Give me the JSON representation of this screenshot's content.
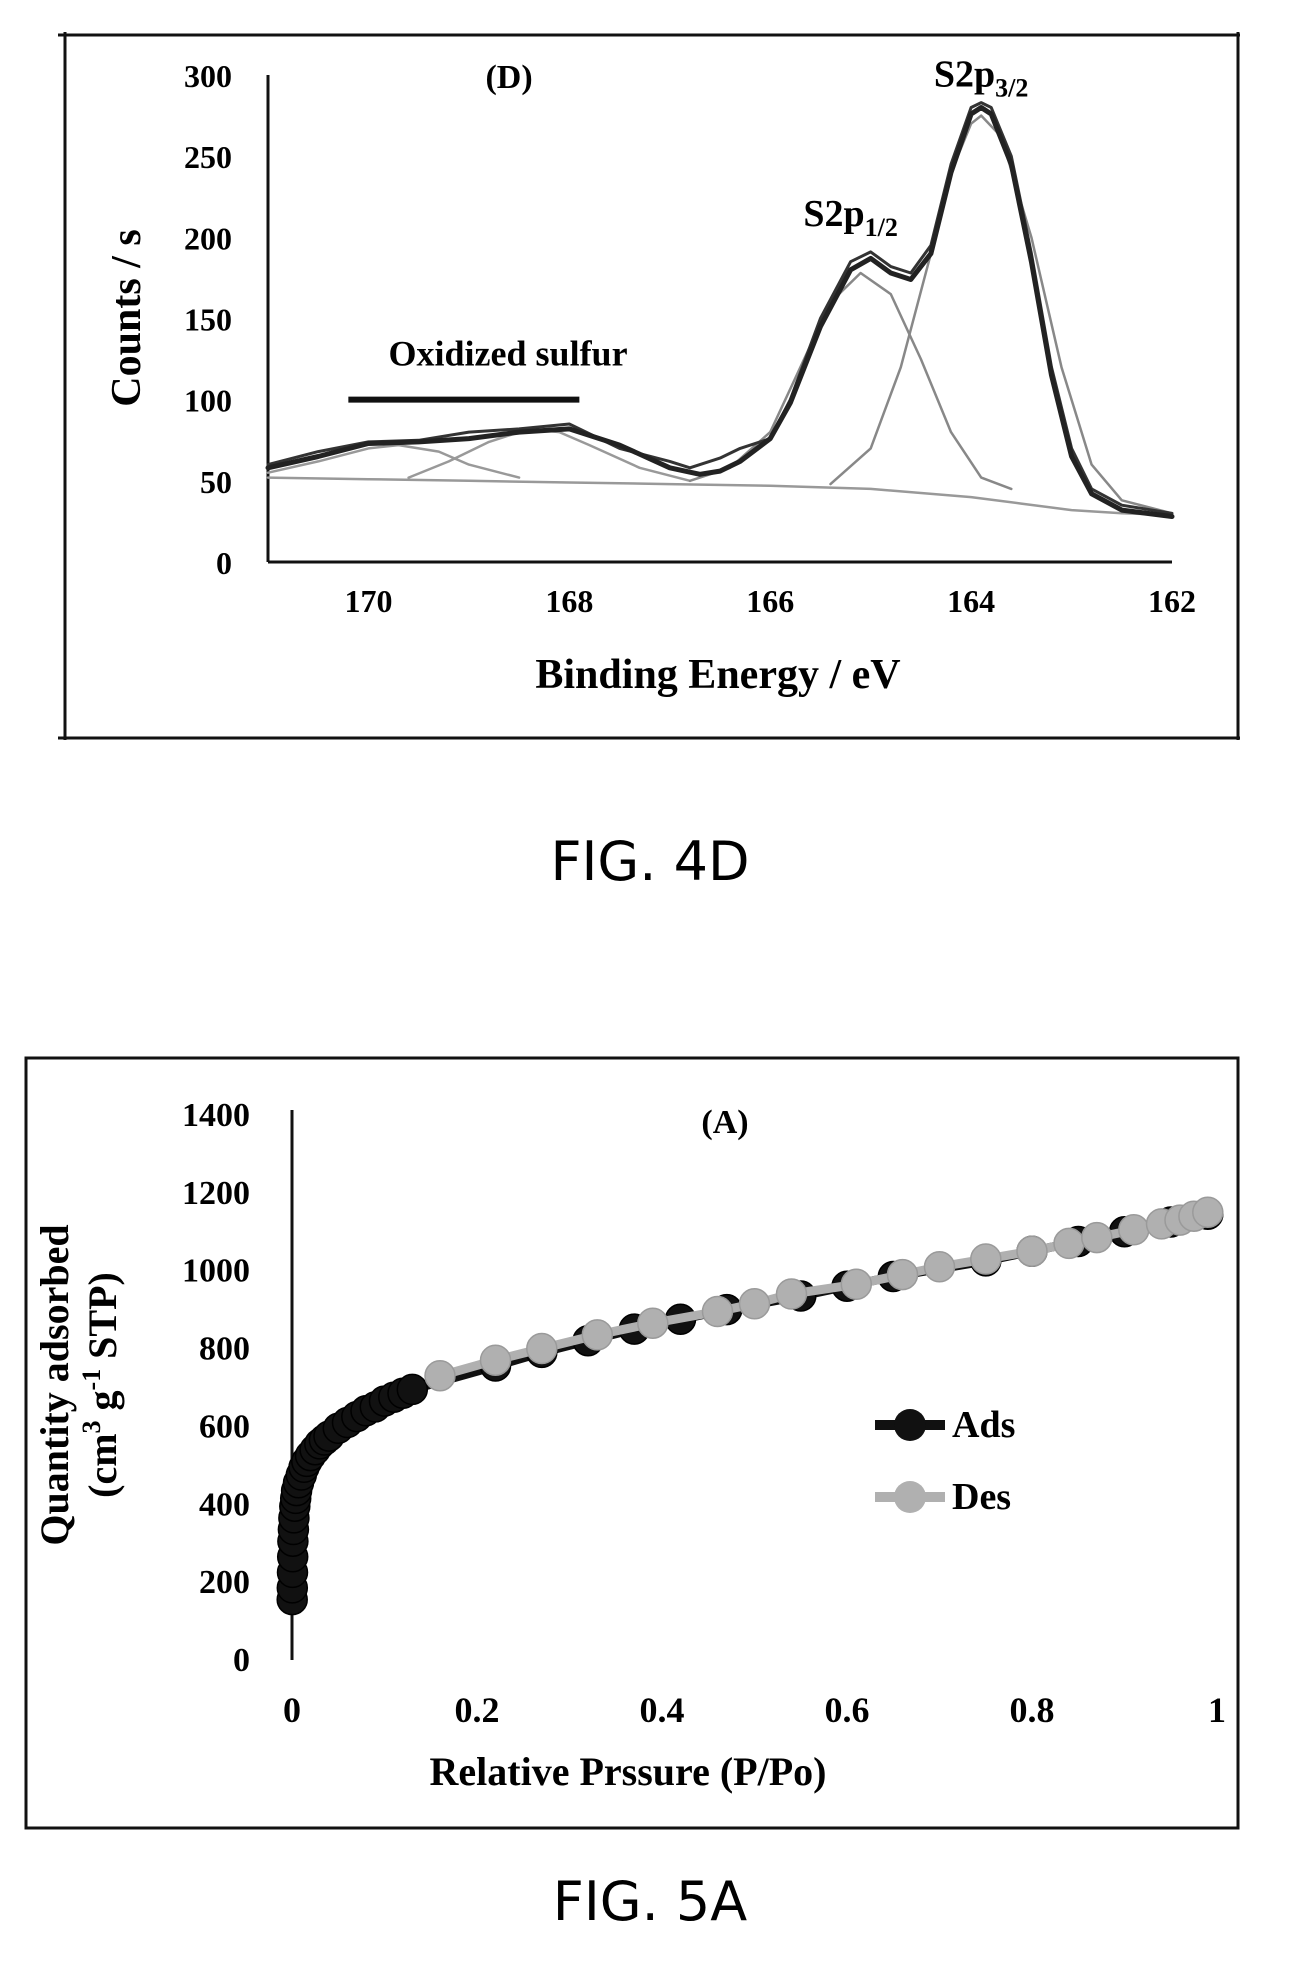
{
  "figures": [
    {
      "caption": "FIG. 4D",
      "chart_data": {
        "type": "line",
        "panel_label": "(D)",
        "title": "",
        "xlabel": "Binding Energy / eV",
        "ylabel": "Counts / s",
        "xlim": [
          171,
          162
        ],
        "ylim": [
          0,
          300
        ],
        "x_reversed": true,
        "xticks": [
          170,
          168,
          166,
          164,
          162
        ],
        "yticks": [
          0,
          50,
          100,
          150,
          200,
          250,
          300
        ],
        "grid": false,
        "legend": "none",
        "annotations": [
          {
            "text": "S2p",
            "sub": "3/2",
            "x": 163.9,
            "y": 293
          },
          {
            "text": "S2p",
            "sub": "1/2",
            "x": 165.2,
            "y": 207
          },
          {
            "text": "Oxidized sulfur",
            "x": 169.8,
            "y": 121
          }
        ],
        "bracket": {
          "x_start": 170.2,
          "x_end": 167.9,
          "y": 100
        },
        "series": [
          {
            "role": "raw",
            "color": "#333333",
            "x": [
              171,
              170.5,
              170,
              169.5,
              169,
              168.5,
              168,
              167.5,
              167,
              166.8,
              166.5,
              166.3,
              166,
              165.8,
              165.5,
              165.2,
              165,
              164.8,
              164.6,
              164.4,
              164.2,
              164,
              163.9,
              163.8,
              163.6,
              163.4,
              163.2,
              163,
              162.8,
              162.5,
              162
            ],
            "y": [
              60,
              68,
              74,
              75,
              80,
              82,
              85,
              70,
              62,
              58,
              64,
              70,
              76,
              100,
              150,
              185,
              191,
              182,
              178,
              195,
              245,
              280,
              283,
              280,
              250,
              190,
              120,
              70,
              45,
              35,
              30
            ]
          },
          {
            "role": "fit-envelope",
            "color": "#222222",
            "x": [
              171,
              170.5,
              170,
              169.5,
              169,
              168.5,
              168,
              167.5,
              167,
              166.7,
              166.5,
              166.3,
              166,
              165.8,
              165.5,
              165.2,
              165,
              164.8,
              164.6,
              164.4,
              164.2,
              164,
              163.9,
              163.8,
              163.6,
              163.4,
              163.2,
              163,
              162.8,
              162.5,
              162
            ],
            "y": [
              58,
              65,
              73,
              74,
              76,
              80,
              82,
              72,
              58,
              54,
              56,
              62,
              76,
              98,
              145,
              180,
              187,
              178,
              174,
              190,
              240,
              276,
              280,
              276,
              245,
              185,
              115,
              65,
              42,
              32,
              28
            ]
          },
          {
            "role": "component-s2p1/2",
            "color": "#888888",
            "x": [
              166.8,
              166.4,
              166,
              165.7,
              165.4,
              165.1,
              164.8,
              164.5,
              164.2,
              163.9,
              163.6
            ],
            "y": [
              50,
              58,
              80,
              120,
              160,
              178,
              165,
              125,
              80,
              52,
              45
            ]
          },
          {
            "role": "component-s2p3/2",
            "color": "#888888",
            "x": [
              165.4,
              165,
              164.7,
              164.4,
              164.2,
              164,
              163.9,
              163.7,
              163.4,
              163.1,
              162.8,
              162.5,
              162
            ],
            "y": [
              48,
              70,
              120,
              190,
              240,
              270,
              275,
              262,
              200,
              120,
              60,
              38,
              30
            ]
          },
          {
            "role": "component-oxidized-1",
            "color": "#999999",
            "x": [
              171,
              170.5,
              170,
              169.7,
              169.3,
              169,
              168.5
            ],
            "y": [
              55,
              62,
              70,
              72,
              68,
              60,
              52
            ]
          },
          {
            "role": "component-oxidized-2",
            "color": "#999999",
            "x": [
              169.6,
              169.2,
              168.8,
              168.4,
              168.1,
              167.8,
              167.3,
              166.8
            ],
            "y": [
              52,
              62,
              74,
              82,
              80,
              72,
              58,
              50
            ]
          },
          {
            "role": "baseline",
            "color": "#999999",
            "x": [
              171,
              170,
              169,
              168,
              167,
              166,
              165,
              164,
              163.5,
              163,
              162.5,
              162
            ],
            "y": [
              52,
              51,
              50,
              49,
              48,
              47,
              45,
              40,
              36,
              32,
              30,
              29
            ]
          }
        ]
      }
    },
    {
      "caption": "FIG. 5A",
      "chart_data": {
        "type": "scatter",
        "panel_label": "(A)",
        "title": "",
        "xlabel": "Relative Prssure (P/Po)",
        "ylabel_line1": "Quantity adsorbed",
        "ylabel_line2_pre": "(cm",
        "ylabel_line2_sup1": "3",
        "ylabel_line2_mid": " g",
        "ylabel_line2_sup2": "-1",
        "ylabel_line2_post": " STP)",
        "xlim": [
          0,
          1
        ],
        "ylim": [
          0,
          1400
        ],
        "xticks": [
          "0",
          "0.2",
          "0.4",
          "0.6",
          "0.8",
          "1"
        ],
        "yticks": [
          "0",
          "200",
          "400",
          "600",
          "800",
          "1000",
          "1200",
          "1400"
        ],
        "grid": false,
        "legend": "center-right",
        "series": [
          {
            "name": "Ads",
            "color": "#111111",
            "x": [
              0.0002,
              0.0003,
              0.0005,
              0.0008,
              0.001,
              0.0015,
              0.002,
              0.003,
              0.004,
              0.005,
              0.007,
              0.01,
              0.013,
              0.016,
              0.02,
              0.025,
              0.03,
              0.035,
              0.04,
              0.05,
              0.06,
              0.07,
              0.08,
              0.09,
              0.1,
              0.11,
              0.12,
              0.13,
              0.22,
              0.27,
              0.32,
              0.37,
              0.42,
              0.47,
              0.55,
              0.6,
              0.65,
              0.75,
              0.8,
              0.85,
              0.9,
              0.95,
              0.99
            ],
            "y": [
              150,
              180,
              220,
              260,
              300,
              330,
              360,
              390,
              410,
              430,
              450,
              470,
              490,
              505,
              520,
              535,
              550,
              560,
              570,
              590,
              605,
              620,
              635,
              645,
              660,
              670,
              680,
              690,
              750,
              785,
              815,
              845,
              870,
              895,
              930,
              955,
              980,
              1020,
              1045,
              1070,
              1095,
              1120,
              1140
            ]
          },
          {
            "name": "Des",
            "color": "#b0b0b0",
            "x": [
              0.16,
              0.22,
              0.27,
              0.33,
              0.39,
              0.46,
              0.5,
              0.54,
              0.61,
              0.66,
              0.7,
              0.75,
              0.8,
              0.84,
              0.87,
              0.91,
              0.94,
              0.96,
              0.975,
              0.99
            ],
            "y": [
              725,
              765,
              795,
              830,
              860,
              890,
              910,
              935,
              960,
              985,
              1005,
              1025,
              1045,
              1065,
              1080,
              1100,
              1115,
              1125,
              1135,
              1145
            ]
          }
        ]
      }
    }
  ]
}
